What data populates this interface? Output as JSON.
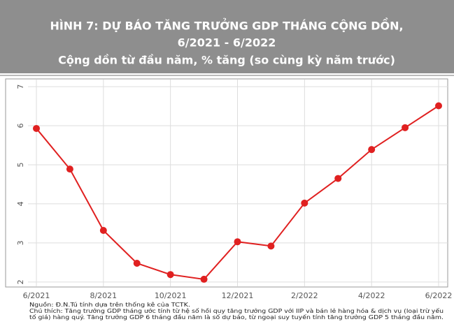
{
  "chart_data": {
    "type": "line",
    "title": [
      "HÌNH 7: DỰ BÁO TĂNG TRƯỞNG GDP THÁNG CỘNG DỒN,",
      "6/2021 - 6/2022"
    ],
    "subtitle": "Cộng dồn từ đầu năm, % tăng (so cùng kỳ năm trước)",
    "categories": [
      "6/2021",
      null,
      "8/2021",
      null,
      "10/2021",
      null,
      "12/2021",
      null,
      "2/2022",
      null,
      "4/2022",
      null,
      "6/2022"
    ],
    "values": [
      5.93,
      4.89,
      3.32,
      2.48,
      2.19,
      2.07,
      3.03,
      2.92,
      4.02,
      4.65,
      5.39,
      5.95,
      6.51
    ],
    "color": "#e02020",
    "ylim": [
      1.89,
      7.18
    ],
    "yticks": [
      2,
      3,
      4,
      5,
      6,
      7
    ],
    "grid": true,
    "notes": [
      "Nguồn: Đ.N.Tú tính dựa trên thống kê của TCTK.",
      "Chú thích: Tăng trưởng GDP tháng ước tính từ hệ số hồi quy tăng trưởng GDP với IIP và bán lẻ hàng hóa & dịch vụ (loại trừ yếu",
      "tố giá) hàng quý. Tăng trưởng GDP 6 tháng đầu năm là số dự báo, từ ngoại suy tuyến tính tăng trưởng GDP 5 tháng đầu năm."
    ]
  }
}
